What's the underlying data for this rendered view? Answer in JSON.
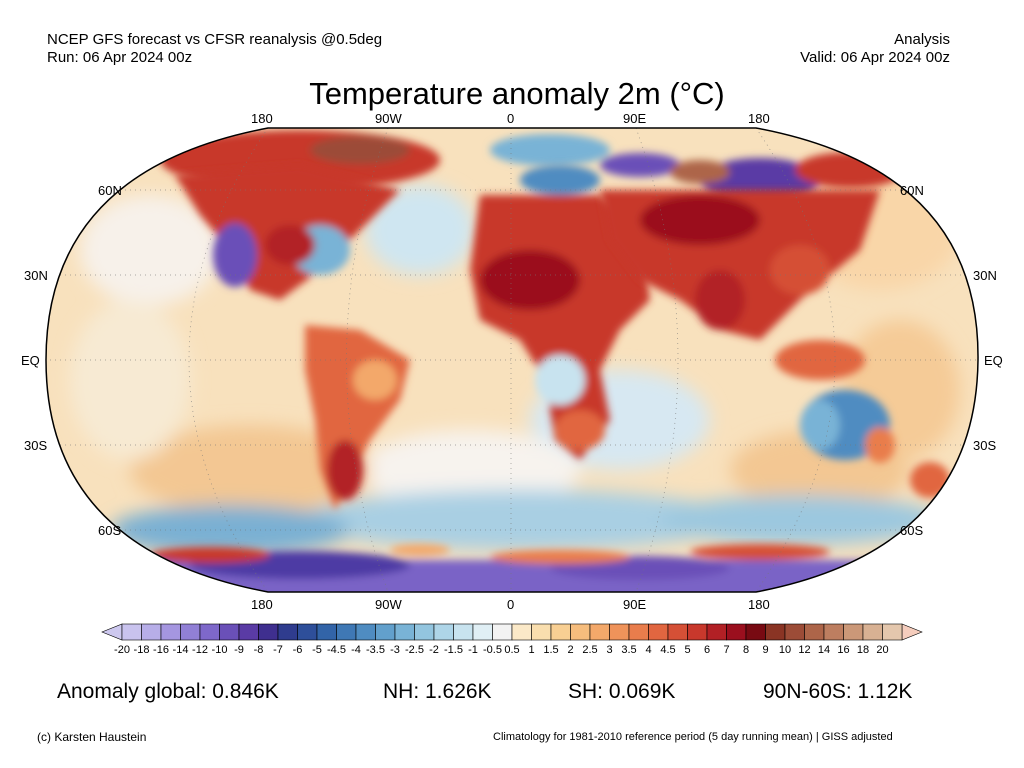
{
  "header": {
    "line1_left": "NCEP GFS forecast vs CFSR reanalysis @0.5deg",
    "line2_left": "Run: 06 Apr 2024 00z",
    "line1_right": "Analysis",
    "line2_right": "Valid: 06 Apr 2024 00z"
  },
  "title": "Temperature anomaly 2m (°C)",
  "axes": {
    "top": [
      "180",
      "90W",
      "0",
      "90E",
      "180"
    ],
    "bottom": [
      "180",
      "90W",
      "0",
      "90E",
      "180"
    ],
    "left": [
      "60N",
      "30N",
      "EQ",
      "30S",
      "60S"
    ],
    "right": [
      "60N",
      "30N",
      "EQ",
      "30S",
      "60S"
    ]
  },
  "colorbar": {
    "labels": [
      "-20",
      "-18",
      "-16",
      "-14",
      "-12",
      "-10",
      "-9",
      "-8",
      "-7",
      "-6",
      "-5",
      "-4.5",
      "-4",
      "-3.5",
      "-3",
      "-2.5",
      "-2",
      "-1.5",
      "-1",
      "-0.5",
      "0.5",
      "1",
      "1.5",
      "2",
      "2.5",
      "3",
      "3.5",
      "4",
      "4.5",
      "5",
      "6",
      "7",
      "8",
      "9",
      "10",
      "12",
      "14",
      "16",
      "18",
      "20"
    ],
    "colors": [
      "#c9c3ee",
      "#b7aee8",
      "#a596e0",
      "#9180d6",
      "#7e68ca",
      "#6a50b8",
      "#5a3ba5",
      "#3f2f8f",
      "#2f3c8e",
      "#2e4f9a",
      "#3264a8",
      "#3f78b5",
      "#4f8cc1",
      "#62a0cc",
      "#79b3d6",
      "#93c5df",
      "#aed5e8",
      "#c8e3ef",
      "#e0eff5",
      "#f3f3f3",
      "#fbe9c8",
      "#f9deae",
      "#f8cf93",
      "#f6bd7d",
      "#f3a86a",
      "#ef935a",
      "#e97d4c",
      "#e16640",
      "#d55036",
      "#c8382c",
      "#b22025",
      "#9b0f1e",
      "#780a12",
      "#8a3424",
      "#9c4c37",
      "#ad6549",
      "#bd7e60",
      "#cb9878",
      "#d8b193",
      "#e4c7ad"
    ],
    "min_arrow_color": "#cdc8ef",
    "max_arrow_color": "#f5cdbd"
  },
  "stats": {
    "global": "Anomaly global: 0.846K",
    "nh": "NH: 1.626K",
    "sh": "SH: 0.069K",
    "polar": "90N-60S: 1.12K"
  },
  "footer": {
    "left": "(c) Karsten Haustein",
    "right": "Climatology for 1981-2010 reference period (5 day running mean) | GISS adjusted"
  }
}
